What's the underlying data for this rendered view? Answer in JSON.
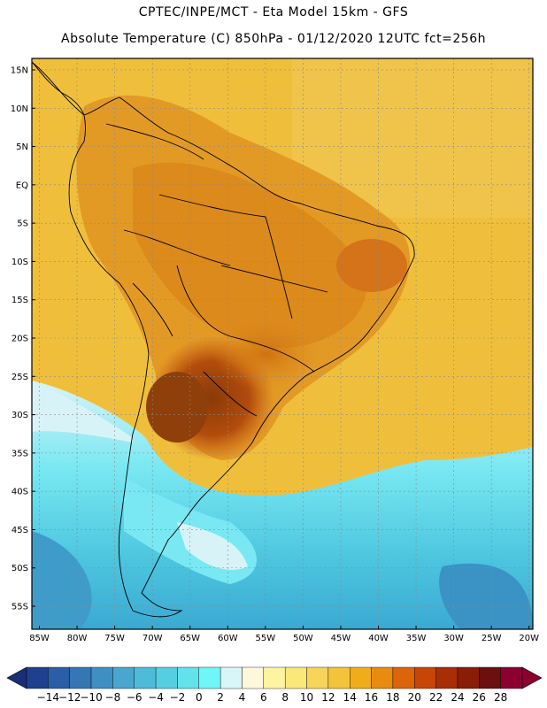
{
  "header": {
    "line1": "CPTEC/INPE/MCT -  Eta Model 15km - GFS",
    "line2": "Absolute Temperature (C) 850hPa - 01/12/2020 12UTC fct=256h"
  },
  "axes": {
    "lat_labels": [
      "15N",
      "10N",
      "5N",
      "EQ",
      "5S",
      "10S",
      "15S",
      "20S",
      "25S",
      "30S",
      "35S",
      "40S",
      "45S",
      "50S",
      "55S"
    ],
    "lat_values": [
      15,
      10,
      5,
      0,
      -5,
      -10,
      -15,
      -20,
      -25,
      -30,
      -35,
      -40,
      -45,
      -50,
      -55
    ],
    "lon_labels": [
      "85W",
      "80W",
      "75W",
      "70W",
      "65W",
      "60W",
      "55W",
      "50W",
      "45W",
      "40W",
      "35W",
      "30W",
      "25W",
      "20W"
    ],
    "lon_values": [
      -85,
      -80,
      -75,
      -70,
      -65,
      -60,
      -55,
      -50,
      -45,
      -40,
      -35,
      -30,
      -25,
      -20
    ],
    "lon_range": [
      -86,
      -19.5
    ],
    "lat_range": [
      -58,
      16.5
    ],
    "grid": true
  },
  "colorbar": {
    "ticks": [
      "-14",
      "-12",
      "-10",
      "-8",
      "-6",
      "-4",
      "-2",
      "0",
      "2",
      "4",
      "6",
      "8",
      "10",
      "12",
      "14",
      "16",
      "18",
      "20",
      "22",
      "24",
      "26",
      "28"
    ],
    "colors": [
      "#1f3f8f",
      "#2a5ea6",
      "#3576b5",
      "#3f8fc4",
      "#48a6cf",
      "#4ebbd8",
      "#56cee2",
      "#62e2ec",
      "#6ff6f6",
      "#d8f6f8",
      "#fdf8dc",
      "#fdf4a0",
      "#fbe77a",
      "#f7d55a",
      "#f3c43a",
      "#efad1a",
      "#e78c10",
      "#dc640a",
      "#c84508",
      "#a82e06",
      "#8a1d08",
      "#6b1010",
      "#8c0030"
    ],
    "under_color": "#1a2f7a",
    "over_color": "#8c0030"
  },
  "colors": {
    "land_outline": "#000000",
    "gridline": "#8a8a8a"
  }
}
